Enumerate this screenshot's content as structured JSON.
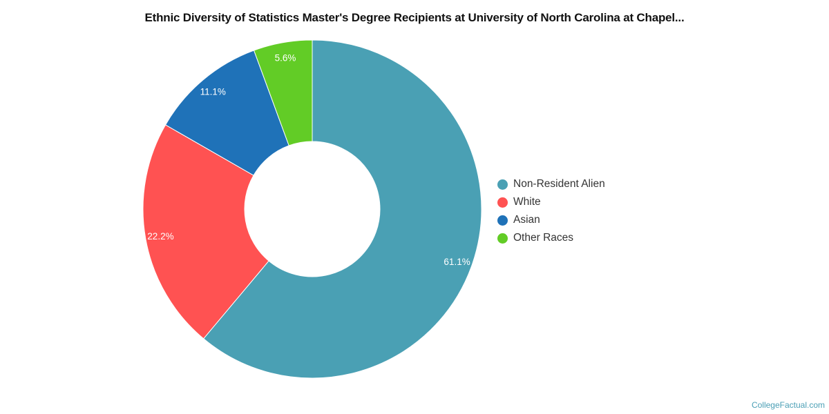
{
  "chart_data": {
    "type": "pie",
    "variant": "donut",
    "title": "Ethnic Diversity of Statistics Master's Degree Recipients at University of North Carolina at Chapel...",
    "categories": [
      "Non-Resident Alien",
      "White",
      "Asian",
      "Other Races"
    ],
    "values": [
      61.1,
      22.2,
      11.1,
      5.6
    ],
    "labels": [
      "61.1%",
      "22.2%",
      "11.1%",
      "5.6%"
    ],
    "colors": [
      "#4aa0b4",
      "#ff5252",
      "#1f72b8",
      "#62cc26"
    ],
    "legend_position": "right",
    "start_angle_deg": 0,
    "direction": "clockwise"
  },
  "footer": {
    "credit": "CollegeFactual.com"
  }
}
